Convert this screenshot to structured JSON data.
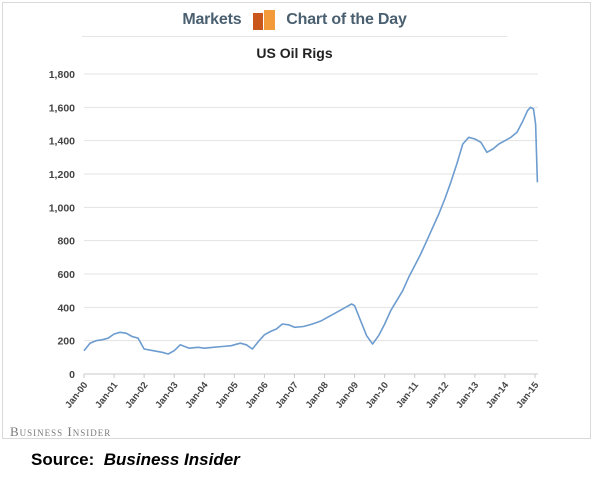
{
  "header": {
    "left_label": "Markets",
    "right_label": "Chart of the Day",
    "icon": "bar-chart-icon",
    "colors": {
      "dark": "#c9571c",
      "light": "#f39a3b",
      "text": "#4a6071"
    }
  },
  "brand": "Business Insider",
  "source": {
    "prefix": "Source:",
    "name": "Business Insider"
  },
  "chart_data": {
    "type": "line",
    "title": "US Oil Rigs",
    "xlabel": "",
    "ylabel": "",
    "ylim": [
      0,
      1800
    ],
    "yticks": [
      0,
      200,
      400,
      600,
      800,
      1000,
      1200,
      1400,
      1600,
      1800
    ],
    "ytick_labels": [
      "0",
      "200",
      "400",
      "600",
      "800",
      "1,000",
      "1,200",
      "1,400",
      "1,600",
      "1,800"
    ],
    "xticks": [
      "Jan-00",
      "Jan-01",
      "Jan-02",
      "Jan-03",
      "Jan-04",
      "Jan-05",
      "Jan-06",
      "Jan-07",
      "Jan-08",
      "Jan-09",
      "Jan-10",
      "Jan-11",
      "Jan-12",
      "Jan-13",
      "Jan-14",
      "Jan-15"
    ],
    "xlim": [
      2000,
      2015.1
    ],
    "grid": "horizontal",
    "line_color": "#6d9ccf",
    "series": [
      {
        "name": "",
        "x": [
          2000.0,
          2000.2,
          2000.4,
          2000.6,
          2000.8,
          2001.0,
          2001.2,
          2001.4,
          2001.6,
          2001.8,
          2002.0,
          2002.3,
          2002.6,
          2002.8,
          2003.0,
          2003.2,
          2003.5,
          2003.8,
          2004.0,
          2004.3,
          2004.6,
          2004.9,
          2005.0,
          2005.2,
          2005.4,
          2005.6,
          2005.8,
          2006.0,
          2006.2,
          2006.4,
          2006.6,
          2006.8,
          2007.0,
          2007.3,
          2007.6,
          2007.9,
          2008.2,
          2008.5,
          2008.7,
          2008.9,
          2009.0,
          2009.2,
          2009.4,
          2009.6,
          2009.8,
          2010.0,
          2010.2,
          2010.4,
          2010.6,
          2010.8,
          2011.0,
          2011.2,
          2011.4,
          2011.6,
          2011.8,
          2012.0,
          2012.2,
          2012.4,
          2012.6,
          2012.8,
          2013.0,
          2013.2,
          2013.4,
          2013.6,
          2013.8,
          2014.0,
          2014.2,
          2014.4,
          2014.6,
          2014.75,
          2014.85,
          2014.95,
          2015.02,
          2015.08
        ],
        "values": [
          140,
          185,
          200,
          205,
          215,
          240,
          250,
          245,
          225,
          215,
          150,
          140,
          130,
          120,
          140,
          175,
          155,
          160,
          155,
          160,
          165,
          170,
          175,
          185,
          175,
          150,
          195,
          235,
          255,
          270,
          300,
          295,
          280,
          285,
          300,
          320,
          350,
          380,
          400,
          420,
          410,
          320,
          230,
          180,
          230,
          300,
          380,
          440,
          500,
          580,
          650,
          720,
          800,
          880,
          960,
          1050,
          1150,
          1260,
          1380,
          1420,
          1410,
          1390,
          1330,
          1350,
          1380,
          1400,
          1420,
          1450,
          1520,
          1580,
          1600,
          1590,
          1500,
          1150
        ]
      }
    ]
  }
}
